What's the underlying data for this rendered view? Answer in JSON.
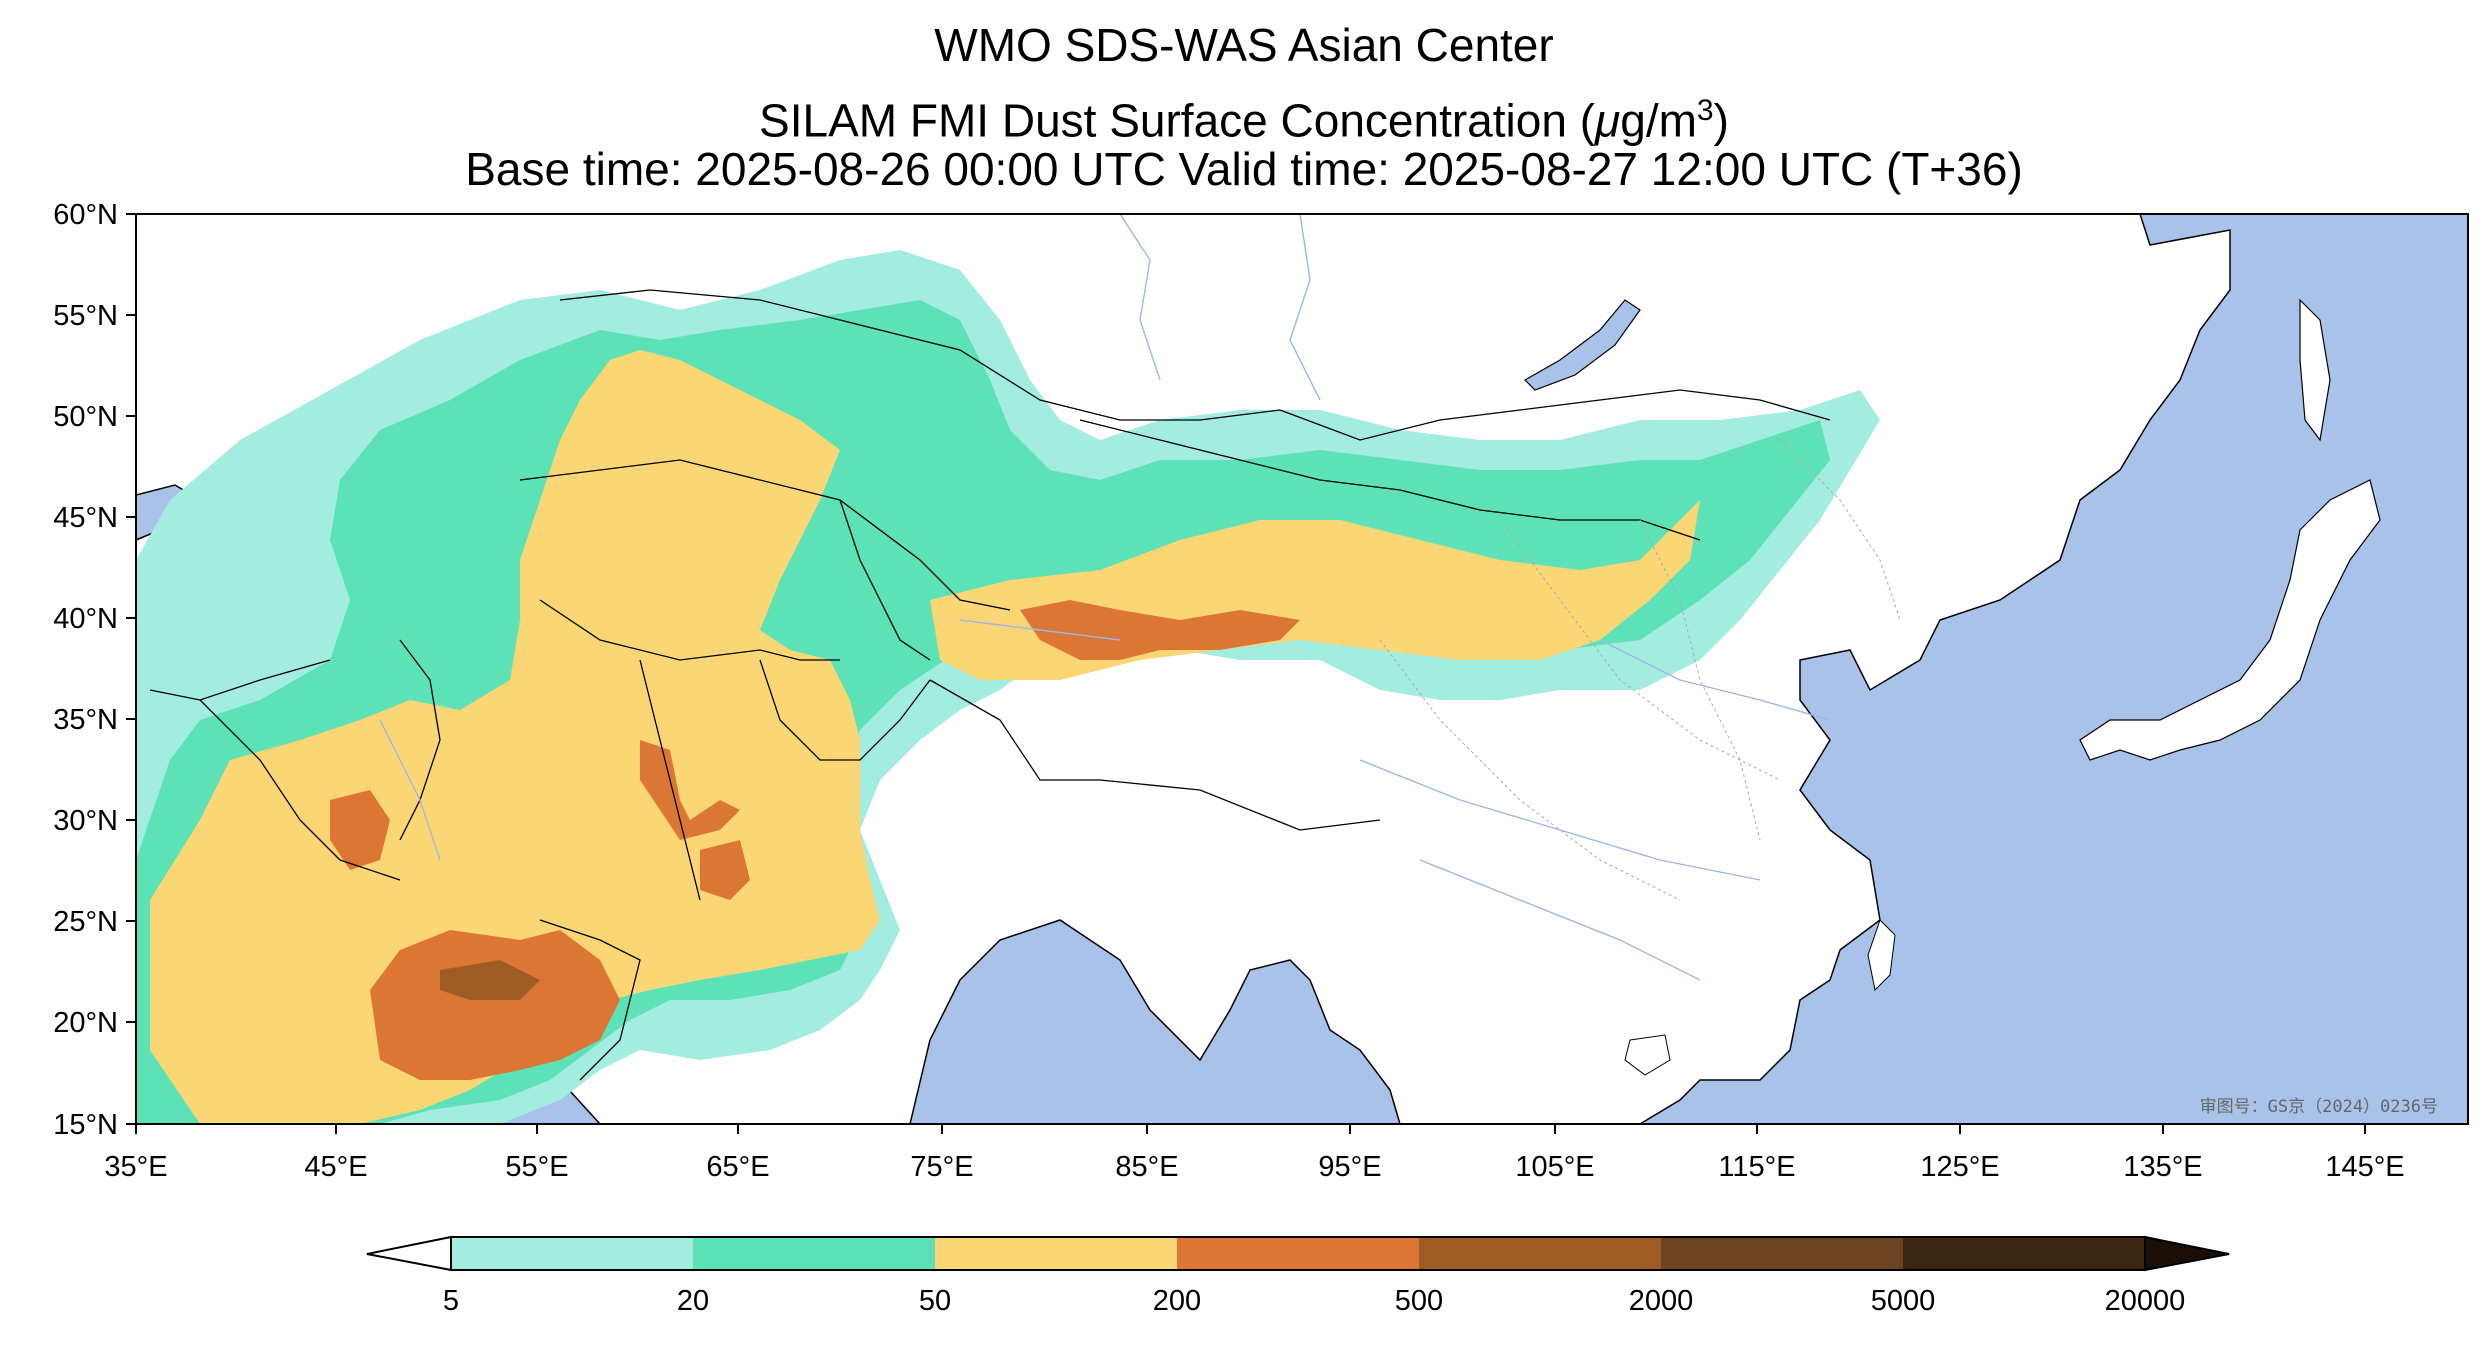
{
  "header": {
    "title": "WMO SDS-WAS Asian Center",
    "subtitle_main": "SILAM FMI Dust Surface Concentration (",
    "subtitle_mu": "μ",
    "subtitle_unit": "g/m",
    "subtitle_exp": "3",
    "subtitle_close": ")",
    "times": "Base time: 2025-08-26 00:00 UTC Valid time: 2025-08-27 12:00 UTC (T+36)"
  },
  "map": {
    "lat_ticks": [
      "60°N",
      "55°N",
      "50°N",
      "45°N",
      "40°N",
      "35°N",
      "30°N",
      "25°N",
      "20°N",
      "15°N"
    ],
    "lon_ticks": [
      "35°E",
      "45°E",
      "55°E",
      "65°E",
      "75°E",
      "85°E",
      "95°E",
      "105°E",
      "115°E",
      "125°E",
      "135°E",
      "145°E"
    ],
    "stamp": "审图号：GS京（2024）0236号",
    "colors": {
      "ocean": "#a9c2ea",
      "land": "#ffffff",
      "border": "#000000",
      "river": "#9db8e6"
    }
  },
  "colorbar": {
    "labels": [
      "5",
      "20",
      "50",
      "200",
      "500",
      "2000",
      "5000",
      "20000"
    ],
    "colors": [
      "#a3ece0",
      "#5de1b6",
      "#fbd675",
      "#dc7634",
      "#9d5c24",
      "#6b4320",
      "#3a2412"
    ],
    "extend": "both"
  }
}
